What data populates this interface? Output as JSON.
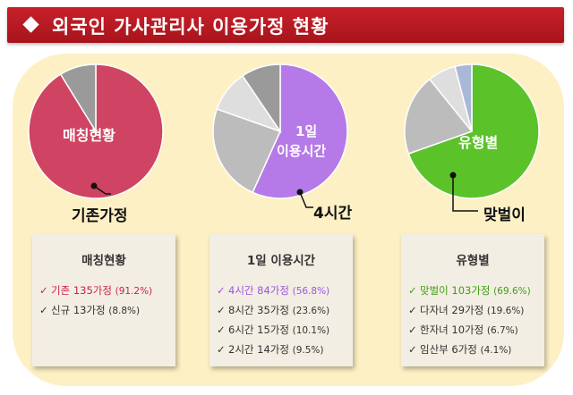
{
  "header": {
    "title": "외국인 가사관리사 이용가정 현황"
  },
  "chart_data": [
    {
      "type": "pie",
      "center_label": "매칭현황",
      "callout_label": "기존가정",
      "slices": [
        {
          "label": "기존",
          "value": 135,
          "percent": 91.2,
          "color": "#cf4462"
        },
        {
          "label": "신규",
          "value": 13,
          "percent": 8.8,
          "color": "#9a9a9a"
        }
      ]
    },
    {
      "type": "pie",
      "center_label_line1": "1일",
      "center_label_line2": "이용시간",
      "callout_label": "4시간",
      "slices": [
        {
          "label": "4시간",
          "value": 84,
          "percent": 56.8,
          "color": "#b57ae8"
        },
        {
          "label": "8시간",
          "value": 35,
          "percent": 23.6,
          "color": "#bcbcbc"
        },
        {
          "label": "6시간",
          "value": 15,
          "percent": 10.1,
          "color": "#dedede"
        },
        {
          "label": "2시간",
          "value": 14,
          "percent": 9.5,
          "color": "#9a9a9a"
        }
      ]
    },
    {
      "type": "pie",
      "center_label": "유형별",
      "callout_label": "맞벌이",
      "slices": [
        {
          "label": "맞벌이",
          "value": 103,
          "percent": 69.6,
          "color": "#5cc22a"
        },
        {
          "label": "다자녀",
          "value": 29,
          "percent": 19.6,
          "color": "#bcbcbc"
        },
        {
          "label": "한자녀",
          "value": 10,
          "percent": 6.7,
          "color": "#dedede"
        },
        {
          "label": "임산부",
          "value": 6,
          "percent": 4.1,
          "color": "#aab8d8"
        }
      ]
    }
  ],
  "boxes": [
    {
      "title": "매칭현황",
      "items": [
        {
          "check": "✓",
          "text": "기존 135가정",
          "pct": "(91.2%)",
          "color": "#cc2244"
        },
        {
          "check": "✓",
          "text": "신규 13가정",
          "pct": "(8.8%)",
          "color": "#333333"
        }
      ]
    },
    {
      "title": "1일 이용시간",
      "items": [
        {
          "check": "✓",
          "text": "4시간 84가정",
          "pct": "(56.8%)",
          "color": "#9b55e0"
        },
        {
          "check": "✓",
          "text": "8시간 35가정",
          "pct": "(23.6%)",
          "color": "#333333"
        },
        {
          "check": "✓",
          "text": "6시간 15가정",
          "pct": "(10.1%)",
          "color": "#333333"
        },
        {
          "check": "✓",
          "text": "2시간 14가정",
          "pct": "(9.5%)",
          "color": "#333333"
        }
      ]
    },
    {
      "title": "유형별",
      "items": [
        {
          "check": "✓",
          "text": "맞벌이 103가정",
          "pct": "(69.6%)",
          "color": "#3f9e14"
        },
        {
          "check": "✓",
          "text": "다자녀 29가정",
          "pct": "(19.6%)",
          "color": "#333333"
        },
        {
          "check": "✓",
          "text": "한자녀 10가정",
          "pct": "(6.7%)",
          "color": "#333333"
        },
        {
          "check": "✓",
          "text": "임산부 6가정",
          "pct": "(4.1%)",
          "color": "#333333"
        }
      ]
    }
  ]
}
